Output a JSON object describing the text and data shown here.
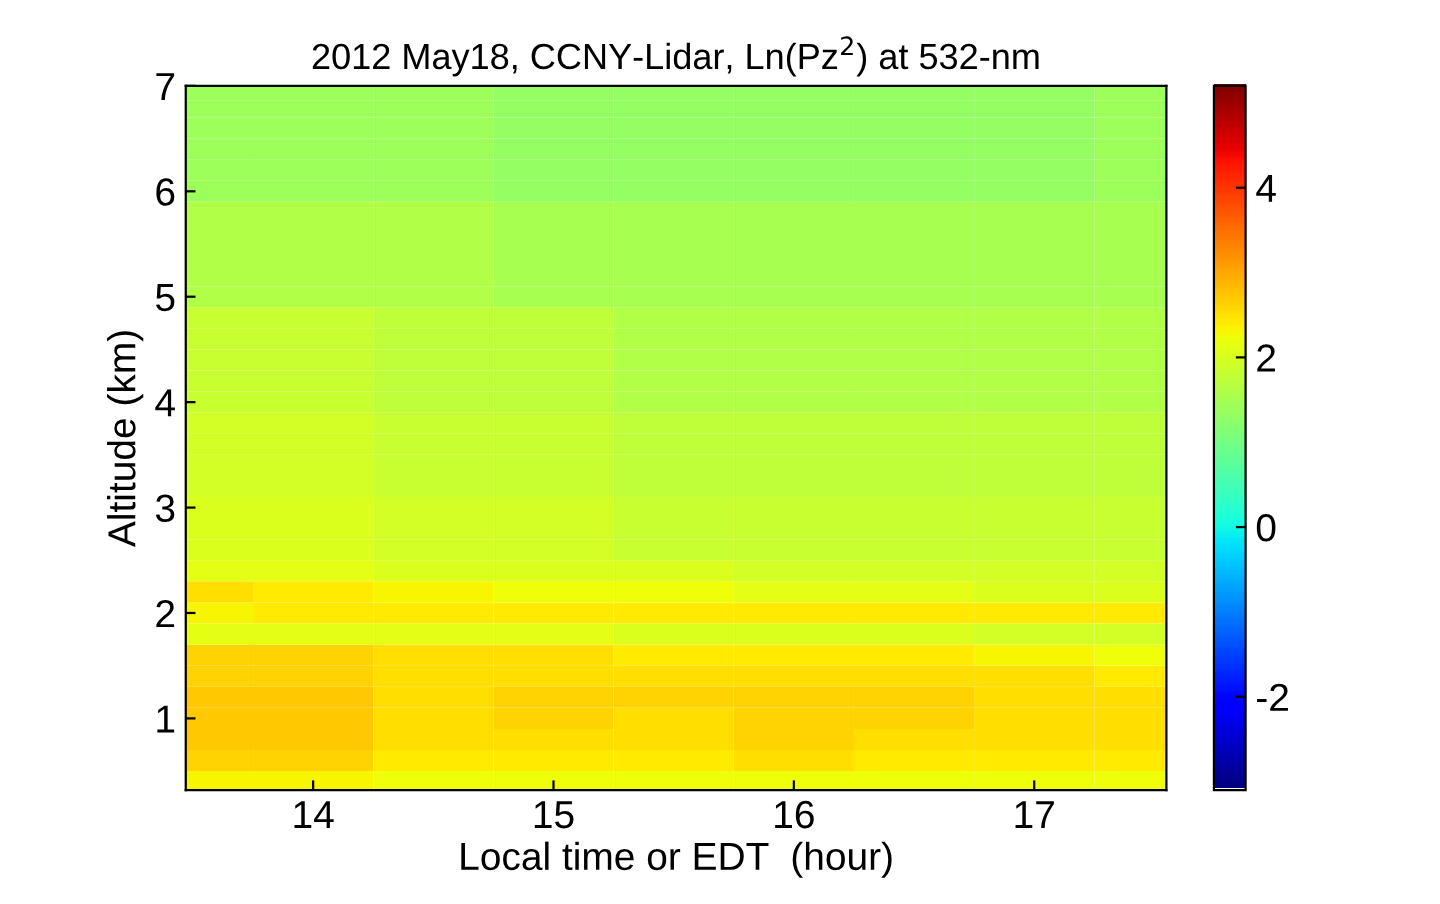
{
  "chart_data": {
    "type": "heatmap",
    "title": "2012 May18, CCNY-Lidar, Ln(Pz$^{2}$) at 532-nm",
    "xlabel": "Local time or EDT  (hour)",
    "ylabel": "Altitude (km)",
    "x": [
      13.5,
      14,
      14.5,
      15,
      15.5,
      16,
      16.5,
      17,
      17.5
    ],
    "y": [
      0.4,
      0.6,
      0.8,
      1.0,
      1.2,
      1.4,
      1.6,
      1.8,
      2.0,
      2.2,
      2.4,
      2.6,
      2.8,
      3.0,
      3.2,
      3.4,
      3.6,
      3.8,
      4.0,
      4.2,
      4.4,
      4.6,
      4.8,
      5.0,
      5.2,
      5.4,
      5.6,
      5.8,
      6.0,
      6.2,
      6.4,
      6.6,
      6.8,
      6.92
    ],
    "cells": [
      [
        2.3,
        2.3,
        2.2,
        2.2,
        2.2,
        2.2,
        2.2,
        2.2,
        2.2
      ],
      [
        2.6,
        2.6,
        2.4,
        2.4,
        2.4,
        2.5,
        2.4,
        2.4,
        2.4
      ],
      [
        2.7,
        2.7,
        2.5,
        2.5,
        2.5,
        2.6,
        2.5,
        2.5,
        2.5
      ],
      [
        2.7,
        2.7,
        2.5,
        2.6,
        2.5,
        2.6,
        2.6,
        2.5,
        2.5
      ],
      [
        2.7,
        2.7,
        2.5,
        2.6,
        2.6,
        2.6,
        2.6,
        2.5,
        2.5
      ],
      [
        2.6,
        2.6,
        2.5,
        2.5,
        2.5,
        2.5,
        2.5,
        2.5,
        2.4
      ],
      [
        2.6,
        2.6,
        2.5,
        2.5,
        2.4,
        2.4,
        2.4,
        2.3,
        2.2
      ],
      [
        2.1,
        2.1,
        2.1,
        2.1,
        2.0,
        2.0,
        2.0,
        1.9,
        1.9
      ],
      [
        2.3,
        2.4,
        2.4,
        2.4,
        2.4,
        2.4,
        2.4,
        2.4,
        2.4
      ],
      [
        2.5,
        2.4,
        2.3,
        2.2,
        2.2,
        2.1,
        2.1,
        2.0,
        2.0
      ],
      [
        2.1,
        2.1,
        2.0,
        2.0,
        2.0,
        1.9,
        1.9,
        1.9,
        1.9
      ],
      [
        2.0,
        2.0,
        1.9,
        1.9,
        1.8,
        1.8,
        1.8,
        1.8,
        1.8
      ],
      [
        2.0,
        2.0,
        1.9,
        1.9,
        1.8,
        1.8,
        1.8,
        1.8,
        1.8
      ],
      [
        2.0,
        2.0,
        1.9,
        1.9,
        1.8,
        1.8,
        1.8,
        1.8,
        1.8
      ],
      [
        1.9,
        1.9,
        1.8,
        1.8,
        1.7,
        1.7,
        1.7,
        1.7,
        1.7
      ],
      [
        1.9,
        1.9,
        1.8,
        1.8,
        1.7,
        1.7,
        1.7,
        1.7,
        1.7
      ],
      [
        1.9,
        1.9,
        1.8,
        1.8,
        1.7,
        1.7,
        1.7,
        1.7,
        1.7
      ],
      [
        1.9,
        1.9,
        1.8,
        1.8,
        1.7,
        1.7,
        1.7,
        1.7,
        1.7
      ],
      [
        1.8,
        1.8,
        1.7,
        1.7,
        1.6,
        1.6,
        1.6,
        1.6,
        1.6
      ],
      [
        1.8,
        1.8,
        1.7,
        1.7,
        1.6,
        1.6,
        1.6,
        1.6,
        1.6
      ],
      [
        1.8,
        1.8,
        1.7,
        1.7,
        1.6,
        1.6,
        1.6,
        1.6,
        1.6
      ],
      [
        1.8,
        1.8,
        1.7,
        1.7,
        1.6,
        1.6,
        1.6,
        1.6,
        1.6
      ],
      [
        1.8,
        1.8,
        1.7,
        1.7,
        1.6,
        1.6,
        1.6,
        1.6,
        1.6
      ],
      [
        1.6,
        1.6,
        1.6,
        1.5,
        1.5,
        1.5,
        1.5,
        1.5,
        1.5
      ],
      [
        1.6,
        1.6,
        1.6,
        1.5,
        1.5,
        1.5,
        1.5,
        1.5,
        1.5
      ],
      [
        1.6,
        1.6,
        1.6,
        1.5,
        1.5,
        1.5,
        1.5,
        1.5,
        1.5
      ],
      [
        1.6,
        1.6,
        1.6,
        1.5,
        1.5,
        1.5,
        1.5,
        1.5,
        1.5
      ],
      [
        1.6,
        1.6,
        1.6,
        1.5,
        1.5,
        1.5,
        1.5,
        1.5,
        1.5
      ],
      [
        1.4,
        1.4,
        1.4,
        1.3,
        1.3,
        1.3,
        1.3,
        1.3,
        1.4
      ],
      [
        1.4,
        1.4,
        1.4,
        1.3,
        1.3,
        1.3,
        1.3,
        1.3,
        1.4
      ],
      [
        1.4,
        1.4,
        1.4,
        1.3,
        1.3,
        1.3,
        1.3,
        1.3,
        1.4
      ],
      [
        1.4,
        1.4,
        1.4,
        1.3,
        1.3,
        1.3,
        1.3,
        1.3,
        1.4
      ],
      [
        1.4,
        1.4,
        1.4,
        1.3,
        1.3,
        1.3,
        1.3,
        1.3,
        1.4
      ],
      [
        1.4,
        1.4,
        1.4,
        1.3,
        1.3,
        1.3,
        1.3,
        1.3,
        1.4
      ]
    ],
    "xlim": [
      13.47,
      17.55
    ],
    "ylim": [
      0.32,
      7
    ],
    "xticks": [
      14,
      15,
      16,
      17
    ],
    "yticks": [
      1,
      2,
      3,
      4,
      5,
      6,
      7
    ],
    "clim": [
      -3.1,
      5.2
    ],
    "cticks": [
      -2,
      0,
      2,
      4
    ],
    "grid": false
  }
}
